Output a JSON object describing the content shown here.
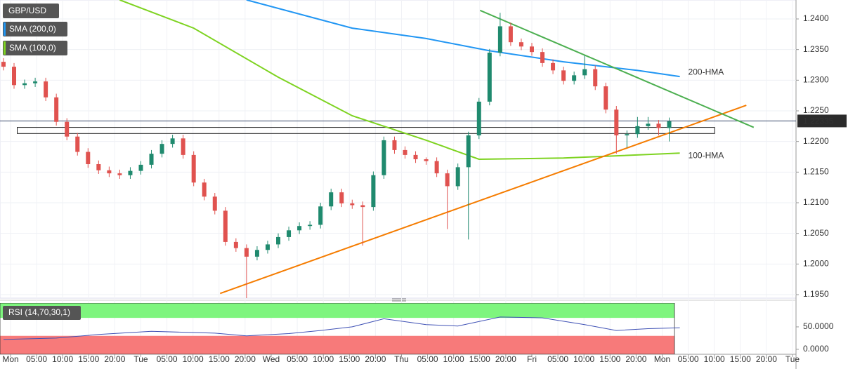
{
  "chart_data": {
    "type": "candlestick",
    "title": "GBP/USD",
    "up_color": "#1f8a6e",
    "down_color": "#e0524f",
    "open": [
      1.233,
      1.2322,
      1.2292,
      1.2295,
      1.2298,
      1.2272,
      1.2232,
      1.2208,
      1.2183,
      1.2163,
      1.2153,
      1.2148,
      1.2145,
      1.2152,
      1.2162,
      1.218,
      1.2196,
      1.2205,
      1.2178,
      1.2133,
      1.211,
      1.2087,
      1.2036,
      1.2026,
      1.2012,
      1.2023,
      1.2032,
      1.2044,
      1.2055,
      1.2062,
      1.2064,
      1.2094,
      1.2117,
      1.2099,
      1.2096,
      1.2093,
      1.2145,
      1.2202,
      1.2186,
      1.2178,
      1.2171,
      1.2168,
      1.2148,
      1.2127,
      1.2158,
      1.221,
      1.2265,
      1.2345,
      1.2388,
      1.2362,
      1.2355,
      1.2346,
      1.2328,
      1.2316,
      1.2299,
      1.2308,
      1.2318,
      1.229,
      1.2252,
      1.221,
      1.2212,
      1.2225,
      1.2229,
      1.2222
    ],
    "high": [
      1.2336,
      1.2328,
      1.2301,
      1.2304,
      1.2304,
      1.2278,
      1.2238,
      1.2214,
      1.2189,
      1.2169,
      1.2159,
      1.2154,
      1.2158,
      1.2168,
      1.2186,
      1.2202,
      1.2211,
      1.2211,
      1.2184,
      1.2139,
      1.2116,
      1.2093,
      1.2042,
      1.2032,
      1.2029,
      1.2038,
      1.205,
      1.2061,
      1.2068,
      1.207,
      1.21,
      1.2123,
      1.2123,
      1.2105,
      1.2102,
      1.2151,
      1.2208,
      1.2208,
      1.2192,
      1.2184,
      1.2174,
      1.2174,
      1.2154,
      1.2164,
      1.2216,
      1.2271,
      1.2351,
      1.241,
      1.2394,
      1.2368,
      1.2361,
      1.2352,
      1.2334,
      1.2322,
      1.2314,
      1.234,
      1.2324,
      1.2296,
      1.2258,
      1.2218,
      1.224,
      1.224,
      1.2235,
      1.2239
    ],
    "low": [
      1.2316,
      1.2286,
      1.2286,
      1.2289,
      1.2266,
      1.2226,
      1.2202,
      1.2177,
      1.2157,
      1.2147,
      1.2142,
      1.2139,
      1.2139,
      1.2146,
      1.2156,
      1.2174,
      1.219,
      1.2172,
      1.2127,
      1.2104,
      1.2081,
      1.203,
      1.202,
      1.194,
      1.2006,
      1.2017,
      1.2026,
      1.2038,
      1.2049,
      1.2056,
      1.2058,
      1.2088,
      1.2093,
      1.209,
      1.203,
      1.2087,
      1.2139,
      1.218,
      1.2172,
      1.2165,
      1.2162,
      1.2142,
      1.2057,
      1.2121,
      1.204,
      1.2204,
      1.2259,
      1.2339,
      1.2356,
      1.2349,
      1.234,
      1.2322,
      1.231,
      1.2293,
      1.2293,
      1.2302,
      1.2284,
      1.2246,
      1.218,
      1.219,
      1.2206,
      1.2219,
      1.221,
      1.22
    ],
    "close": [
      1.2322,
      1.2292,
      1.2295,
      1.2298,
      1.2272,
      1.2232,
      1.2208,
      1.2183,
      1.2163,
      1.2153,
      1.2148,
      1.2145,
      1.2152,
      1.2162,
      1.218,
      1.2196,
      1.2205,
      1.2178,
      1.2133,
      1.211,
      1.2087,
      1.2036,
      1.2026,
      1.2012,
      1.2023,
      1.2032,
      1.2044,
      1.2055,
      1.2062,
      1.2064,
      1.2094,
      1.2117,
      1.2099,
      1.2096,
      1.2093,
      1.2145,
      1.2202,
      1.2186,
      1.2178,
      1.2171,
      1.2168,
      1.2148,
      1.2127,
      1.2158,
      1.221,
      1.2265,
      1.2345,
      1.2388,
      1.2362,
      1.2355,
      1.2346,
      1.2328,
      1.2316,
      1.2299,
      1.2308,
      1.2318,
      1.229,
      1.2252,
      1.221,
      1.2212,
      1.2225,
      1.2229,
      1.2222,
      1.2233
    ],
    "xlim": [
      -0.33,
      75
    ],
    "ylim": [
      1.19443,
      1.24309
    ],
    "yticks": [
      {
        "value": 1.195,
        "label": "1.1950"
      },
      {
        "value": 1.2,
        "label": "1.2000"
      },
      {
        "value": 1.205,
        "label": "1.2050"
      },
      {
        "value": 1.21,
        "label": "1.2100"
      },
      {
        "value": 1.215,
        "label": "1.2150"
      },
      {
        "value": 1.22,
        "label": "1.2200"
      },
      {
        "value": 1.225,
        "label": "1.2250"
      },
      {
        "value": 1.23,
        "label": "1.2300"
      },
      {
        "value": 1.235,
        "label": "1.2350"
      },
      {
        "value": 1.24,
        "label": "1.2400"
      }
    ],
    "current_price": 1.22335,
    "x_labels": [
      "Mon",
      "05:00",
      "10:00",
      "15:00",
      "20:00",
      "Tue",
      "05:00",
      "10:00",
      "15:00",
      "20:00",
      "Wed",
      "05:00",
      "10:00",
      "15:00",
      "20:00",
      "Thu",
      "05:00",
      "10:00",
      "15:00",
      "20:00",
      "Fri",
      "05:00",
      "10:00",
      "15:00",
      "20:00",
      "Mon",
      "05:00",
      "10:00",
      "15:00",
      "20:00",
      "Tue"
    ],
    "overlays": [
      {
        "name": "SMA (200,0)",
        "label": "200-HMA",
        "color": "#2196f3",
        "x": [
          23,
          33,
          40,
          46,
          53,
          60,
          64
        ],
        "values": [
          1.2431,
          1.2385,
          1.2368,
          1.2348,
          1.233,
          1.2316,
          1.2306
        ]
      },
      {
        "name": "SMA (100,0)",
        "label": "100-HMA",
        "color": "#7ed321",
        "x": [
          11,
          18,
          26,
          33,
          40,
          45,
          53,
          64
        ],
        "values": [
          1.2431,
          1.2385,
          1.2305,
          1.2242,
          1.2202,
          1.2171,
          1.2173,
          1.2181
        ]
      }
    ],
    "trendlines": [
      {
        "color": "#f57c00",
        "x": [
          20.5,
          70.3
        ],
        "values": [
          1.1952,
          1.2259
        ]
      },
      {
        "color": "#4caf50",
        "x": [
          45.1,
          71
        ],
        "values": [
          1.2414,
          1.2223
        ]
      }
    ],
    "zone": {
      "x": [
        1.3,
        67.3
      ],
      "values": [
        1.2223,
        1.2213
      ]
    },
    "rsi": {
      "name": "RSI (14,70,30,1)",
      "color": "#3f51b5",
      "x": [
        0,
        5,
        9,
        14,
        20,
        23,
        27,
        30,
        33,
        36,
        40,
        43,
        47,
        51,
        55,
        58,
        61,
        64
      ],
      "values": [
        22,
        25,
        33,
        40,
        36,
        30,
        35,
        42,
        50,
        68,
        55,
        52,
        72,
        70,
        55,
        42,
        46,
        48
      ],
      "ylim": [
        -11,
        103
      ],
      "upper": 70,
      "lower": 30,
      "yticks": [
        {
          "value": 50,
          "label": "50.0000"
        },
        {
          "value": 0,
          "label": "0.0000"
        }
      ]
    }
  }
}
